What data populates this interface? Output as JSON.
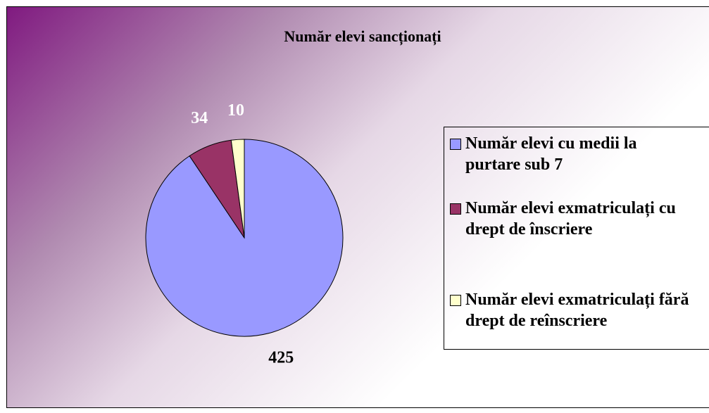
{
  "chart_data": {
    "type": "pie",
    "title": "Număr elevi sancționați",
    "categories": [
      "Număr elevi cu medii la purtare sub 7",
      "Număr elevi exmatriculați cu drept de înscriere",
      "Număr elevi exmatriculați fără drept de reînscriere"
    ],
    "values": [
      425,
      34,
      10
    ],
    "colors": [
      "#9999ff",
      "#993366",
      "#ffffcc"
    ],
    "legend": "right"
  }
}
